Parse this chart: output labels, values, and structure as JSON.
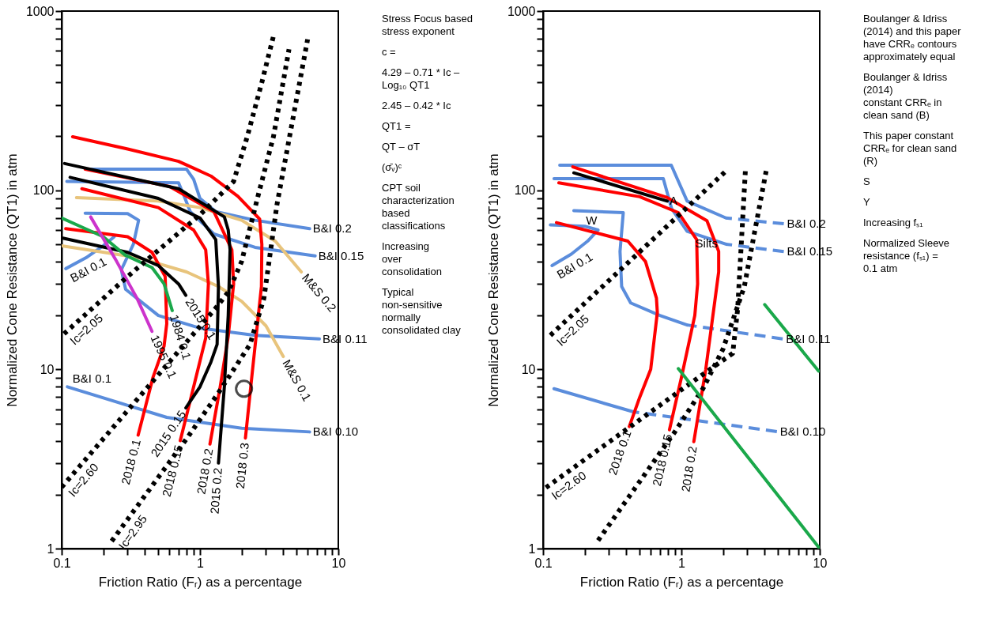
{
  "chart_data": [
    {
      "type": "line",
      "log": "xy",
      "xlabel": "Friction Ratio (Fᵣ) as a percentage",
      "ylabel": "Normalized Cone Resistance (QT1) in atm",
      "xlim": [
        0.1,
        10
      ],
      "ylim": [
        1,
        1000
      ],
      "xticks": [
        0.1,
        {
          "value": 0.2,
          "label": null
        },
        {
          "value": 0.3,
          "label": null
        },
        {
          "value": 0.4,
          "label": null
        },
        {
          "value": 0.5,
          "label": null
        },
        {
          "value": 0.6,
          "label": null
        },
        {
          "value": 0.7,
          "label": null
        },
        {
          "value": 0.8,
          "label": null
        },
        {
          "value": 0.9,
          "label": null
        },
        1,
        {
          "value": 2,
          "label": null
        },
        {
          "value": 3,
          "label": null
        },
        {
          "value": 4,
          "label": null
        },
        {
          "value": 5,
          "label": null
        },
        {
          "value": 6,
          "label": null
        },
        {
          "value": 7,
          "label": null
        },
        {
          "value": 8,
          "label": null
        },
        {
          "value": 9,
          "label": null
        },
        10
      ],
      "yticks": [
        1,
        {
          "value": 2,
          "label": null
        },
        {
          "value": 3,
          "label": null
        },
        {
          "value": 4,
          "label": null
        },
        {
          "value": 5,
          "label": null
        },
        {
          "value": 6,
          "label": null
        },
        {
          "value": 7,
          "label": null
        },
        {
          "value": 8,
          "label": null
        },
        {
          "value": 9,
          "label": null
        },
        10,
        {
          "value": 20,
          "label": null
        },
        {
          "value": 30,
          "label": null
        },
        {
          "value": 40,
          "label": null
        },
        {
          "value": 50,
          "label": null
        },
        {
          "value": 60,
          "label": null
        },
        {
          "value": 70,
          "label": null
        },
        {
          "value": 80,
          "label": null
        },
        {
          "value": 90,
          "label": null
        },
        100,
        {
          "value": 200,
          "label": null
        },
        {
          "value": 300,
          "label": null
        },
        {
          "value": 400,
          "label": null
        },
        {
          "value": 500,
          "label": null
        },
        {
          "value": 600,
          "label": null
        },
        {
          "value": 700,
          "label": null
        },
        {
          "value": 800,
          "label": null
        },
        {
          "value": 900,
          "label": null
        },
        1000
      ],
      "series": [
        {
          "name": "B&I 0.2",
          "color": "#5b8ddc",
          "x": [
            6.2,
            2.5,
            1.3,
            1.0,
            0.9,
            0.8,
            0.155
          ],
          "values": [
            61,
            68,
            76,
            90,
            115,
            131,
            131
          ]
        },
        {
          "name": "B&I 0.15",
          "color": "#5b8ddc",
          "x": [
            6.8,
            2.5,
            1.26,
            0.85,
            0.78,
            0.7,
            0.109
          ],
          "values": [
            43,
            48,
            57,
            76,
            90,
            110,
            112
          ]
        },
        {
          "name": "B&I 0.11",
          "color": "#5b8ddc",
          "x": [
            7.3,
            2.5,
            1.0,
            0.5,
            0.29,
            0.27,
            0.33,
            0.36,
            0.3,
            0.148
          ],
          "values": [
            14.8,
            15.5,
            17,
            20,
            28,
            36,
            50,
            68,
            74,
            74.5
          ]
        },
        {
          "name": "B&I 0.1",
          "color": "#5b8ddc",
          "x": [
            0.107,
            0.15,
            0.2,
            0.24
          ],
          "values": [
            36.5,
            42,
            49,
            55
          ]
        },
        {
          "name": "B&I 0.10",
          "color": "#5b8ddc",
          "x": [
            6.2,
            2.0,
            0.575,
            0.3,
            0.11
          ],
          "values": [
            4.48,
            4.7,
            5.4,
            6.3,
            8.0
          ]
        },
        {
          "name": "M&S 0.2",
          "color": "#e8c47c",
          "x": [
            5.4,
            3.5,
            2,
            1,
            0.5,
            0.128
          ],
          "values": [
            35,
            52,
            68,
            80,
            87,
            91
          ]
        },
        {
          "name": "M&S 0.1",
          "color": "#e8c47c",
          "x": [
            4.0,
            3.0,
            2.0,
            1.36,
            0.8,
            0.36,
            0.1
          ],
          "values": [
            11.8,
            17.5,
            24,
            29,
            35,
            42,
            49
          ]
        },
        {
          "name": "2018 0.3",
          "color": "#ff0000",
          "x": [
            2.13,
            2.4,
            2.78,
            2.8,
            2.7,
            1.88,
            1.2,
            0.7,
            0.3,
            0.12
          ],
          "values": [
            4.14,
            10,
            29,
            50,
            69,
            92.5,
            120,
            145,
            170,
            199
          ]
        },
        {
          "name": "2018 0.2",
          "color": "#ff0000",
          "x": [
            1.18,
            1.4,
            1.6,
            1.75,
            1.7,
            1.26,
            0.6,
            0.148
          ],
          "values": [
            3.83,
            8,
            15.3,
            30,
            46.5,
            76,
            105,
            131
          ]
        },
        {
          "name": "2018 0.15",
          "color": "#ff0000",
          "x": [
            0.72,
            0.9,
            1.1,
            1.15,
            1.1,
            0.9,
            0.5,
            0.14
          ],
          "values": [
            4.0,
            8,
            15,
            30,
            46.5,
            60,
            80,
            102
          ]
        },
        {
          "name": "2018 0.1",
          "color": "#ff0000",
          "x": [
            0.357,
            0.458,
            0.55,
            0.575,
            0.56,
            0.45,
            0.3,
            0.107
          ],
          "values": [
            4.3,
            9.06,
            13.5,
            18,
            33,
            45,
            55,
            61
          ]
        },
        {
          "name": "2015 0.2",
          "color": "#000000",
          "x": [
            1.36,
            1.5,
            1.6,
            1.65,
            1.6,
            1.5,
            0.7,
            0.105
          ],
          "values": [
            3.0,
            8,
            20,
            46.5,
            60,
            71,
            102,
            141
          ]
        },
        {
          "name": "2015 0.15",
          "color": "#000000",
          "x": [
            0.79,
            1.0,
            1.2,
            1.33,
            1.36,
            1.3,
            1.0,
            0.5,
            0.115
          ],
          "values": [
            6.1,
            8,
            11,
            13.8,
            29,
            53,
            70,
            90,
            118
          ]
        },
        {
          "name": "2015 0.1",
          "color": "#000000",
          "x": [
            0.79,
            0.7,
            0.5,
            0.3,
            0.102
          ],
          "values": [
            25.9,
            30,
            38,
            45,
            54
          ]
        },
        {
          "name": "1984 0.1",
          "color": "#1aa84a",
          "x": [
            0.63,
            0.55,
            0.45,
            0.287,
            0.2,
            0.1
          ],
          "values": [
            21.3,
            30,
            37,
            43.5,
            55,
            70
          ]
        },
        {
          "name": "1995 0.1",
          "color": "#cc33cc",
          "x": [
            0.45,
            0.35,
            0.25,
            0.162
          ],
          "values": [
            16.3,
            25,
            40,
            71
          ]
        },
        {
          "name": "Ic=2.05",
          "color": "#000000",
          "line_style": "dotted",
          "x": [
            0.104,
            0.3,
            1.0,
            1.75,
            2.2,
            2.8,
            3.45
          ],
          "values": [
            15.8,
            33,
            73,
            112,
            200,
            400,
            760
          ]
        },
        {
          "name": "Ic=2.60",
          "color": "#000000",
          "line_style": "dotted",
          "x": [
            0.1,
            0.3,
            1.3,
            1.6,
            2.0,
            2.6,
            3.4,
            4.4
          ],
          "values": [
            2.2,
            5.9,
            22,
            27,
            40,
            90,
            200,
            612
          ]
        },
        {
          "name": "Ic=2.95",
          "color": "#000000",
          "line_style": "dotted",
          "x": [
            0.23,
            0.5,
            0.8,
            1.36,
            2.3,
            2.9,
            3.6,
            6.0
          ],
          "values": [
            1.1,
            2.5,
            4.1,
            7.4,
            13.8,
            25,
            83,
            696
          ]
        },
        {
          "type": "scatter",
          "marker": "circle",
          "color": "#000000",
          "x": [
            2.08
          ],
          "values": [
            7.8
          ]
        }
      ],
      "annotations": [
        "Stress Focus based stress exponent",
        "c =",
        "4.29 – 0.71 * Ic – Log₁₀ QT1",
        "2.45  –  0.42 * Ic",
        "QT1 =",
        "QT – σT",
        "(σ̄ᵥ)ᶜ",
        "CPT soil\ncharacterization\nbased\nclassifications",
        "Increasing\nover\nconsolidation",
        {
          "text": "B&I 0.1",
          "x": 0.12,
          "y": 7.9
        },
        "Typical\nnon-sensitive\nnormally\nconsolidated clay"
      ]
    },
    {
      "type": "line",
      "log": "xy",
      "xlabel": "Friction Ratio (Fᵣ) as a percentage",
      "ylabel": "Normalized Cone Resistance (QT1) in atm",
      "xlim": [
        0.1,
        10
      ],
      "ylim": [
        1,
        1000
      ],
      "xticks": [
        0.1,
        {
          "value": 0.2,
          "label": null
        },
        {
          "value": 0.3,
          "label": null
        },
        {
          "value": 0.4,
          "label": null
        },
        {
          "value": 0.5,
          "label": null
        },
        {
          "value": 0.6,
          "label": null
        },
        {
          "value": 0.7,
          "label": null
        },
        {
          "value": 0.8,
          "label": null
        },
        {
          "value": 0.9,
          "label": null
        },
        1,
        {
          "value": 2,
          "label": null
        },
        {
          "value": 3,
          "label": null
        },
        {
          "value": 4,
          "label": null
        },
        {
          "value": 5,
          "label": null
        },
        {
          "value": 6,
          "label": null
        },
        {
          "value": 7,
          "label": null
        },
        {
          "value": 8,
          "label": null
        },
        {
          "value": 9,
          "label": null
        },
        10
      ],
      "yticks": [
        1,
        {
          "value": 2,
          "label": null
        },
        {
          "value": 3,
          "label": null
        },
        {
          "value": 4,
          "label": null
        },
        {
          "value": 5,
          "label": null
        },
        {
          "value": 6,
          "label": null
        },
        {
          "value": 7,
          "label": null
        },
        {
          "value": 8,
          "label": null
        },
        {
          "value": 9,
          "label": null
        },
        10,
        {
          "value": 20,
          "label": null
        },
        {
          "value": 30,
          "label": null
        },
        {
          "value": 40,
          "label": null
        },
        {
          "value": 50,
          "label": null
        },
        {
          "value": 60,
          "label": null
        },
        {
          "value": 70,
          "label": null
        },
        {
          "value": 80,
          "label": null
        },
        {
          "value": 90,
          "label": null
        },
        100,
        {
          "value": 200,
          "label": null
        },
        {
          "value": 300,
          "label": null
        },
        {
          "value": 400,
          "label": null
        },
        {
          "value": 500,
          "label": null
        },
        {
          "value": 600,
          "label": null
        },
        {
          "value": 700,
          "label": null
        },
        {
          "value": 800,
          "label": null
        },
        {
          "value": 900,
          "label": null
        },
        1000
      ],
      "series": [
        {
          "color": "#5b8ddc",
          "x": [
            0.132,
            0.845,
            1.1,
            2.1
          ],
          "values": [
            138,
            138,
            87,
            70
          ]
        },
        {
          "name": "B&I 0.2",
          "color": "#5b8ddc",
          "line_style": "dashed",
          "x": [
            5.5,
            2.1
          ],
          "values": [
            65,
            70
          ]
        },
        {
          "color": "#5b8ddc",
          "x": [
            0.12,
            0.74,
            0.85,
            1.1,
            2.1
          ],
          "values": [
            116,
            116,
            79,
            59,
            50
          ]
        },
        {
          "name": "B&I 0.15",
          "color": "#5b8ddc",
          "line_style": "dashed",
          "x": [
            5.5,
            2.1
          ],
          "values": [
            45.5,
            50
          ]
        },
        {
          "color": "#5b8ddc",
          "x": [
            0.167,
            0.38,
            0.36,
            0.37,
            0.43,
            0.7,
            1.1
          ],
          "values": [
            77,
            75,
            45.5,
            29,
            23.5,
            20,
            17.7
          ]
        },
        {
          "name": "B&I 0.11",
          "color": "#5b8ddc",
          "line_style": "dashed",
          "x": [
            5.4,
            1.1
          ],
          "values": [
            14.8,
            17.7
          ]
        },
        {
          "name": "B&I 0.1",
          "color": "#5b8ddc",
          "x": [
            0.116,
            0.16,
            0.21,
            0.25,
            0.2,
            0.113
          ],
          "values": [
            38,
            44,
            52,
            60,
            63,
            64
          ]
        },
        {
          "color": "#5b8ddc",
          "x": [
            0.12,
            0.45
          ],
          "values": [
            7.8,
            5.8
          ]
        },
        {
          "name": "B&I 0.10",
          "color": "#5b8ddc",
          "line_style": "dashed",
          "x": [
            4.9,
            0.45
          ],
          "values": [
            4.5,
            5.8
          ]
        },
        {
          "name": "2018 0.1",
          "color": "#ff0000",
          "x": [
            0.42,
            0.5,
            0.6,
            0.67,
            0.66,
            0.55,
            0.41,
            0.125
          ],
          "values": [
            4.8,
            7,
            10,
            20.8,
            25,
            40,
            52,
            66
          ]
        },
        {
          "name": "2018 0.15",
          "color": "#ff0000",
          "x": [
            0.82,
            1.0,
            1.25,
            1.31,
            1.29,
            0.95,
            0.5,
            0.13
          ],
          "values": [
            4.6,
            9,
            20,
            30,
            53,
            75,
            92,
            110
          ]
        },
        {
          "name": "2018 0.2",
          "color": "#ff0000",
          "x": [
            1.23,
            1.5,
            1.75,
            1.86,
            1.86,
            1.53,
            0.79,
            0.164
          ],
          "values": [
            3.95,
            10,
            24.5,
            35,
            45.6,
            67.6,
            91,
            135
          ]
        },
        {
          "color": "#000000",
          "x": [
            0.167,
            0.79
          ],
          "values": [
            125,
            87
          ]
        },
        {
          "name": "Ic=2.05",
          "color": "#000000",
          "line_style": "dotted",
          "x": [
            0.113,
            2.1
          ],
          "values": [
            15.5,
            128
          ]
        },
        {
          "name": "Ic=2.60",
          "color": "#000000",
          "line_style": "dotted",
          "x": [
            0.105,
            1.0,
            2.35,
            2.55,
            2.9
          ],
          "values": [
            2.19,
            7.7,
            12.3,
            21.6,
            128
          ]
        },
        {
          "color": "#000000",
          "line_style": "dotted",
          "x": [
            0.25,
            0.9,
            1.43,
            2.0,
            2.85,
            4.1
          ],
          "values": [
            1.11,
            4.5,
            7.8,
            13,
            29,
            128
          ]
        },
        {
          "color": "#1aa84a",
          "x": [
            0.95,
            10
          ],
          "values": [
            10.1,
            1
          ]
        },
        {
          "color": "#1aa84a",
          "x": [
            4.0,
            9.8
          ],
          "values": [
            23,
            9.8
          ]
        }
      ],
      "annotations": [
        "Boulanger & Idriss (2014) and this paper\nhave CRRₑ contours approximately equal",
        "Boulanger & Idriss (2014)\nconstant CRRₑ in clean sand (B)",
        "This paper constant\nCRRₑ for clean sand (R)",
        {
          "text": "W",
          "x": 0.204,
          "y": 60
        },
        {
          "text": "A",
          "x": 0.82,
          "y": 77
        },
        "S",
        "Y",
        {
          "text": "Silts",
          "x": 1.26,
          "y": 44.6
        },
        "Increasing fₛ₁",
        "Normalized Sleeve\nresistance (fₛ₁) = 0.1 atm"
      ]
    }
  ]
}
